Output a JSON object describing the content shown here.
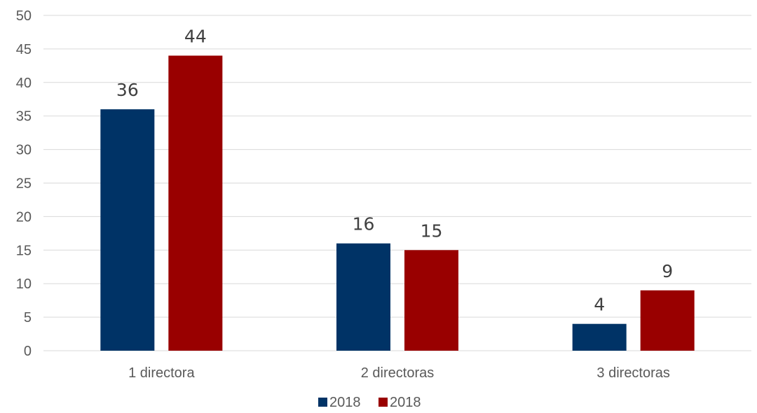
{
  "chart_data": {
    "type": "bar",
    "title": "",
    "xlabel": "",
    "ylabel": "",
    "categories": [
      "1 directora",
      "2 directoras",
      "3 directoras"
    ],
    "series": [
      {
        "name": "2018",
        "color": "#003366",
        "values": [
          36,
          16,
          4
        ]
      },
      {
        "name": "2018",
        "color": "#990000",
        "values": [
          44,
          15,
          9
        ]
      }
    ],
    "ylim": [
      0,
      50
    ],
    "yticks": [
      0,
      5,
      10,
      15,
      20,
      25,
      30,
      35,
      40,
      45,
      50
    ],
    "grid": true,
    "data_labels": true,
    "legend_position": "bottom"
  }
}
